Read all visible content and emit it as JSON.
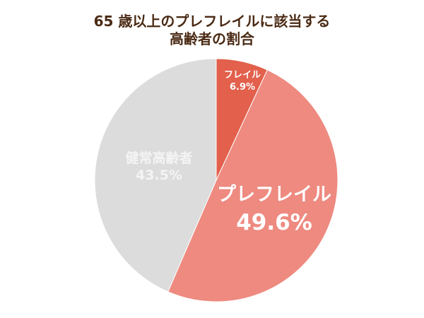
{
  "title": {
    "line1": "65 歳以上のプレフレイルに該当する",
    "line2": "高齢者の割合"
  },
  "colors": {
    "title": "#4a2a14",
    "frail": "#e2604c",
    "prefrail": "#ee8a80",
    "healthy": "#dcdcdc",
    "label": "#ffffff"
  },
  "labels": {
    "frail": {
      "name": "フレイル",
      "pct": "6.9%"
    },
    "prefrail": {
      "name": "プレフレイル",
      "pct": "49.6%"
    },
    "healthy": {
      "name": "健常高齢者",
      "pct": "43.5%"
    }
  },
  "chart_data": {
    "type": "pie",
    "title": "65 歳以上のプレフレイルに該当する高齢者の割合",
    "categories": [
      "フレイル",
      "プレフレイル",
      "健常高齢者"
    ],
    "values": [
      6.9,
      49.6,
      43.5
    ],
    "unit": "%",
    "start_angle": "12 o'clock, clockwise",
    "colors": [
      "#e2604c",
      "#ee8a80",
      "#dcdcdc"
    ],
    "legend": "none (labels inside slices)"
  }
}
